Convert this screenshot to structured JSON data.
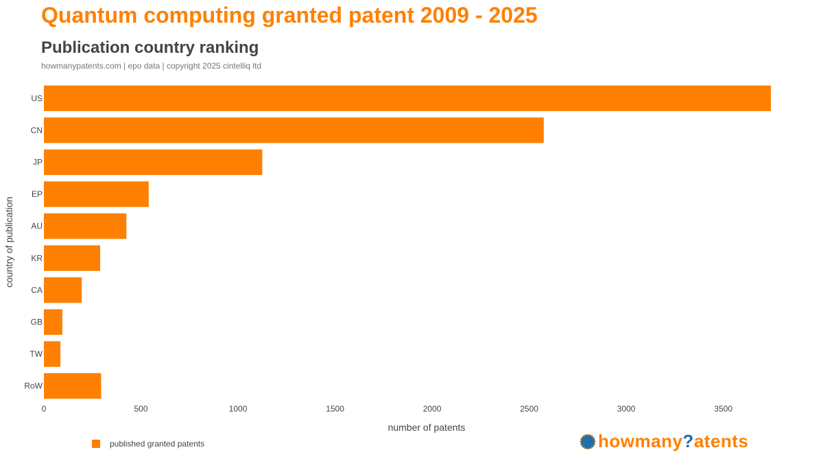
{
  "header": {
    "title": "Quantum computing granted patent 2009 - 2025",
    "subtitle": "Publication country ranking",
    "source": "howmanypatents.com | epo data | copyright 2025 cintelliq ltd"
  },
  "chart_data": {
    "type": "bar",
    "orientation": "horizontal",
    "categories": [
      "US",
      "CN",
      "JP",
      "EP",
      "AU",
      "KR",
      "CA",
      "GB",
      "TW",
      "RoW"
    ],
    "series": [
      {
        "name": "published granted patents",
        "values": [
          3745,
          2575,
          1125,
          540,
          425,
          290,
          195,
          95,
          85,
          295
        ]
      }
    ],
    "xlabel": "number of patents",
    "ylabel": "country of publication",
    "xlim": [
      0,
      3745
    ],
    "xticks": [
      0,
      500,
      1000,
      1500,
      2000,
      2500,
      3000,
      3500
    ],
    "grid": false,
    "legend_position": "bottom-left",
    "bar_color": "#ff8000"
  },
  "legend": {
    "label": "published granted patents"
  },
  "logo": {
    "text_main": "howmany",
    "text_q": "?",
    "text_end": "atents",
    "icon": "globe-logo-icon",
    "primary_color": "#ff8000",
    "secondary_color": "#1f6fa8"
  }
}
